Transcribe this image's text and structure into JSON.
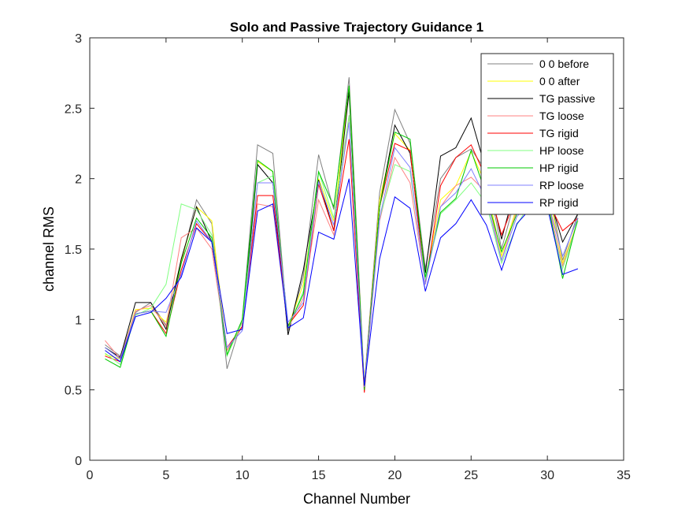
{
  "chart_data": {
    "type": "line",
    "title": "Solo and Passive Trajectory Guidance 1",
    "xlabel": "Channel Number",
    "ylabel": "channel RMS",
    "xlim": [
      0,
      35
    ],
    "ylim": [
      0,
      3
    ],
    "xticks": [
      0,
      5,
      10,
      15,
      20,
      25,
      30,
      35
    ],
    "yticks": [
      0,
      0.5,
      1,
      1.5,
      2,
      2.5,
      3
    ],
    "xtick_labels": [
      "0",
      "5",
      "10",
      "15",
      "20",
      "25",
      "30",
      "35"
    ],
    "ytick_labels": [
      "0",
      "0.5",
      "1",
      "1.5",
      "2",
      "2.5",
      "3"
    ],
    "grid": false,
    "legend_position": "top-right",
    "x": [
      1,
      2,
      3,
      4,
      5,
      6,
      7,
      8,
      9,
      10,
      11,
      12,
      13,
      14,
      15,
      16,
      17,
      18,
      19,
      20,
      21,
      22,
      23,
      24,
      25,
      26,
      27,
      28,
      29,
      30,
      31,
      32
    ],
    "series": [
      {
        "name": "0 0 before",
        "color": "#808080",
        "values": [
          0.82,
          0.74,
          1.05,
          1.12,
          0.96,
          1.4,
          1.85,
          1.68,
          0.65,
          1.0,
          2.24,
          2.18,
          0.92,
          1.3,
          2.17,
          1.78,
          2.72,
          0.54,
          1.9,
          2.49,
          2.25,
          1.36,
          2.0,
          2.15,
          2.21,
          2.05,
          1.5,
          1.9,
          1.95,
          2.0,
          1.42,
          1.75
        ]
      },
      {
        "name": "0 0 after",
        "color": "#ffff00",
        "values": [
          0.75,
          0.72,
          1.07,
          1.08,
          0.98,
          1.42,
          1.8,
          1.7,
          0.78,
          0.95,
          2.12,
          2.05,
          0.95,
          1.25,
          2.0,
          1.7,
          2.65,
          0.52,
          1.85,
          2.32,
          2.2,
          1.28,
          1.85,
          1.95,
          2.19,
          1.95,
          1.45,
          1.8,
          1.9,
          1.95,
          1.4,
          1.7
        ]
      },
      {
        "name": "TG passive",
        "color": "#000000",
        "values": [
          0.8,
          0.73,
          1.12,
          1.12,
          0.93,
          1.43,
          1.8,
          1.55,
          0.78,
          0.95,
          2.1,
          1.97,
          0.89,
          1.35,
          1.99,
          1.63,
          2.62,
          0.52,
          1.8,
          2.38,
          2.18,
          1.33,
          2.16,
          2.22,
          2.43,
          2.05,
          1.57,
          1.98,
          2.0,
          1.92,
          1.55,
          1.75
        ]
      },
      {
        "name": "TG loose",
        "color": "#ff8080",
        "values": [
          0.85,
          0.72,
          1.06,
          1.1,
          0.95,
          1.58,
          1.65,
          1.5,
          0.78,
          0.95,
          1.82,
          1.8,
          0.94,
          1.15,
          1.85,
          1.6,
          2.45,
          0.5,
          1.7,
          2.15,
          1.97,
          1.25,
          1.8,
          1.95,
          2.01,
          1.9,
          1.42,
          1.78,
          1.85,
          1.85,
          1.38,
          1.7
        ]
      },
      {
        "name": "TG rigid",
        "color": "#ff0000",
        "values": [
          0.74,
          0.7,
          1.04,
          1.06,
          0.9,
          1.35,
          1.68,
          1.55,
          0.8,
          0.95,
          1.88,
          1.88,
          0.96,
          1.1,
          1.96,
          1.63,
          2.28,
          0.48,
          1.8,
          2.25,
          2.2,
          1.25,
          1.95,
          2.15,
          2.24,
          2.0,
          1.6,
          1.88,
          1.9,
          1.85,
          1.63,
          1.72
        ]
      },
      {
        "name": "HP loose",
        "color": "#80ff80",
        "values": [
          0.76,
          0.68,
          1.03,
          1.08,
          1.25,
          1.82,
          1.78,
          1.6,
          0.74,
          0.98,
          1.97,
          2.02,
          0.94,
          1.2,
          2.05,
          1.72,
          2.45,
          0.52,
          1.72,
          2.1,
          2.05,
          1.28,
          1.75,
          1.85,
          1.97,
          1.82,
          1.4,
          1.67,
          1.85,
          1.8,
          1.36,
          1.7
        ]
      },
      {
        "name": "HP rigid",
        "color": "#00c800",
        "values": [
          0.72,
          0.66,
          1.04,
          1.06,
          0.88,
          1.4,
          1.72,
          1.58,
          0.75,
          1.0,
          2.13,
          2.05,
          0.95,
          1.18,
          2.05,
          1.8,
          2.66,
          0.5,
          1.8,
          2.33,
          2.28,
          1.3,
          1.76,
          1.86,
          2.2,
          1.88,
          1.48,
          1.75,
          1.88,
          1.85,
          1.29,
          1.72
        ]
      },
      {
        "name": "RP loose",
        "color": "#8080ff",
        "values": [
          0.8,
          0.72,
          1.04,
          1.06,
          1.05,
          1.32,
          1.7,
          1.55,
          0.8,
          0.92,
          1.97,
          1.97,
          0.98,
          1.12,
          1.98,
          1.67,
          2.4,
          0.52,
          1.72,
          2.22,
          2.08,
          1.25,
          1.8,
          1.9,
          2.07,
          1.85,
          1.42,
          1.73,
          1.85,
          1.85,
          1.45,
          1.72
        ]
      },
      {
        "name": "RP rigid",
        "color": "#0000ff",
        "values": [
          0.78,
          0.7,
          1.02,
          1.05,
          1.15,
          1.3,
          1.65,
          1.55,
          0.9,
          0.93,
          1.77,
          1.82,
          0.94,
          1.01,
          1.62,
          1.57,
          2.0,
          0.53,
          1.43,
          1.87,
          1.79,
          1.2,
          1.58,
          1.68,
          1.85,
          1.67,
          1.35,
          1.68,
          1.8,
          1.8,
          1.32,
          1.36
        ]
      }
    ]
  }
}
